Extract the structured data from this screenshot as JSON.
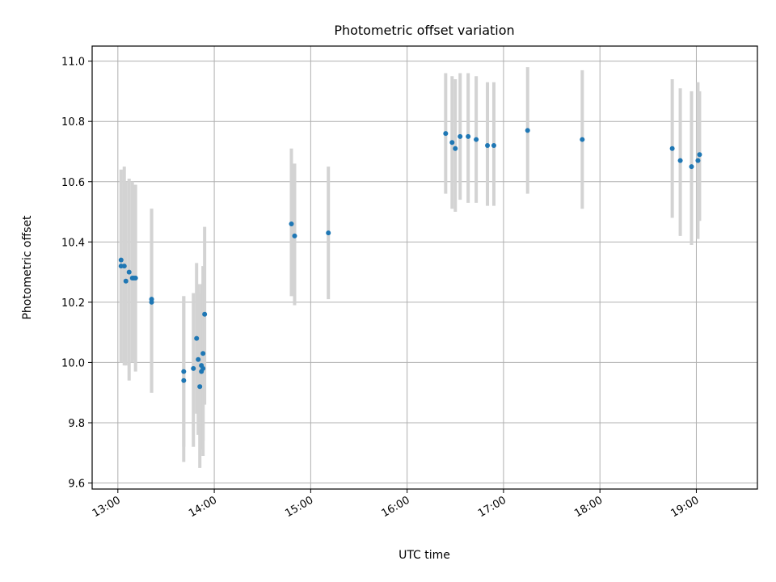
{
  "chart_data": {
    "type": "scatter",
    "title": "Photometric offset variation",
    "xlabel": "UTC time",
    "ylabel": "Photometric offset",
    "x_ticks": [
      "13:00",
      "14:00",
      "15:00",
      "16:00",
      "17:00",
      "18:00",
      "19:00"
    ],
    "y_ticks": [
      "9.6",
      "9.8",
      "10.0",
      "10.2",
      "10.4",
      "10.6",
      "10.8",
      "11.0"
    ],
    "xlim": [
      "12:44",
      "19:38"
    ],
    "ylim": [
      9.58,
      11.05
    ],
    "grid": true,
    "colors": {
      "points": "#1f77b4",
      "error_bars": "#d3d3d3"
    },
    "points": [
      {
        "t": "13:02",
        "y": 10.32,
        "lo": 10.0,
        "hi": 10.64
      },
      {
        "t": "13:02",
        "y": 10.34,
        "lo": 10.0,
        "hi": 10.64
      },
      {
        "t": "13:04",
        "y": 10.32,
        "lo": 9.99,
        "hi": 10.65
      },
      {
        "t": "13:05",
        "y": 10.27,
        "lo": 9.99,
        "hi": 10.6
      },
      {
        "t": "13:07",
        "y": 10.3,
        "lo": 9.94,
        "hi": 10.61
      },
      {
        "t": "13:09",
        "y": 10.28,
        "lo": 10.0,
        "hi": 10.6
      },
      {
        "t": "13:10",
        "y": 10.28,
        "lo": 10.01,
        "hi": 10.59
      },
      {
        "t": "13:11",
        "y": 10.28,
        "lo": 9.97,
        "hi": 10.59
      },
      {
        "t": "13:21",
        "y": 10.21,
        "lo": 9.9,
        "hi": 10.51
      },
      {
        "t": "13:21",
        "y": 10.2,
        "lo": 9.9,
        "hi": 10.51
      },
      {
        "t": "13:41",
        "y": 9.97,
        "lo": 9.72,
        "hi": 10.22
      },
      {
        "t": "13:41",
        "y": 9.94,
        "lo": 9.67,
        "hi": 10.22
      },
      {
        "t": "13:47",
        "y": 9.98,
        "lo": 9.72,
        "hi": 10.23
      },
      {
        "t": "13:49",
        "y": 10.08,
        "lo": 9.83,
        "hi": 10.33
      },
      {
        "t": "13:50",
        "y": 10.01,
        "lo": 9.76,
        "hi": 10.26
      },
      {
        "t": "13:51",
        "y": 9.92,
        "lo": 9.65,
        "hi": 10.18
      },
      {
        "t": "13:52",
        "y": 9.99,
        "lo": 9.73,
        "hi": 10.26
      },
      {
        "t": "13:52",
        "y": 9.97,
        "lo": 9.71,
        "hi": 10.23
      },
      {
        "t": "13:53",
        "y": 9.98,
        "lo": 9.69,
        "hi": 10.26
      },
      {
        "t": "13:53",
        "y": 10.03,
        "lo": 9.74,
        "hi": 10.32
      },
      {
        "t": "13:54",
        "y": 10.16,
        "lo": 9.86,
        "hi": 10.45
      },
      {
        "t": "14:48",
        "y": 10.46,
        "lo": 10.22,
        "hi": 10.71
      },
      {
        "t": "14:50",
        "y": 10.42,
        "lo": 10.19,
        "hi": 10.66
      },
      {
        "t": "15:11",
        "y": 10.43,
        "lo": 10.21,
        "hi": 10.65
      },
      {
        "t": "16:24",
        "y": 10.76,
        "lo": 10.56,
        "hi": 10.96
      },
      {
        "t": "16:28",
        "y": 10.73,
        "lo": 10.51,
        "hi": 10.95
      },
      {
        "t": "16:30",
        "y": 10.71,
        "lo": 10.5,
        "hi": 10.94
      },
      {
        "t": "16:33",
        "y": 10.75,
        "lo": 10.54,
        "hi": 10.96
      },
      {
        "t": "16:38",
        "y": 10.75,
        "lo": 10.53,
        "hi": 10.96
      },
      {
        "t": "16:43",
        "y": 10.74,
        "lo": 10.53,
        "hi": 10.95
      },
      {
        "t": "16:50",
        "y": 10.72,
        "lo": 10.52,
        "hi": 10.93
      },
      {
        "t": "16:54",
        "y": 10.72,
        "lo": 10.52,
        "hi": 10.93
      },
      {
        "t": "17:15",
        "y": 10.77,
        "lo": 10.56,
        "hi": 10.98
      },
      {
        "t": "17:49",
        "y": 10.74,
        "lo": 10.51,
        "hi": 10.97
      },
      {
        "t": "18:45",
        "y": 10.71,
        "lo": 10.48,
        "hi": 10.94
      },
      {
        "t": "18:50",
        "y": 10.67,
        "lo": 10.42,
        "hi": 10.91
      },
      {
        "t": "18:57",
        "y": 10.65,
        "lo": 10.39,
        "hi": 10.9
      },
      {
        "t": "19:01",
        "y": 10.67,
        "lo": 10.41,
        "hi": 10.93
      },
      {
        "t": "19:02",
        "y": 10.69,
        "lo": 10.47,
        "hi": 10.9
      }
    ]
  }
}
